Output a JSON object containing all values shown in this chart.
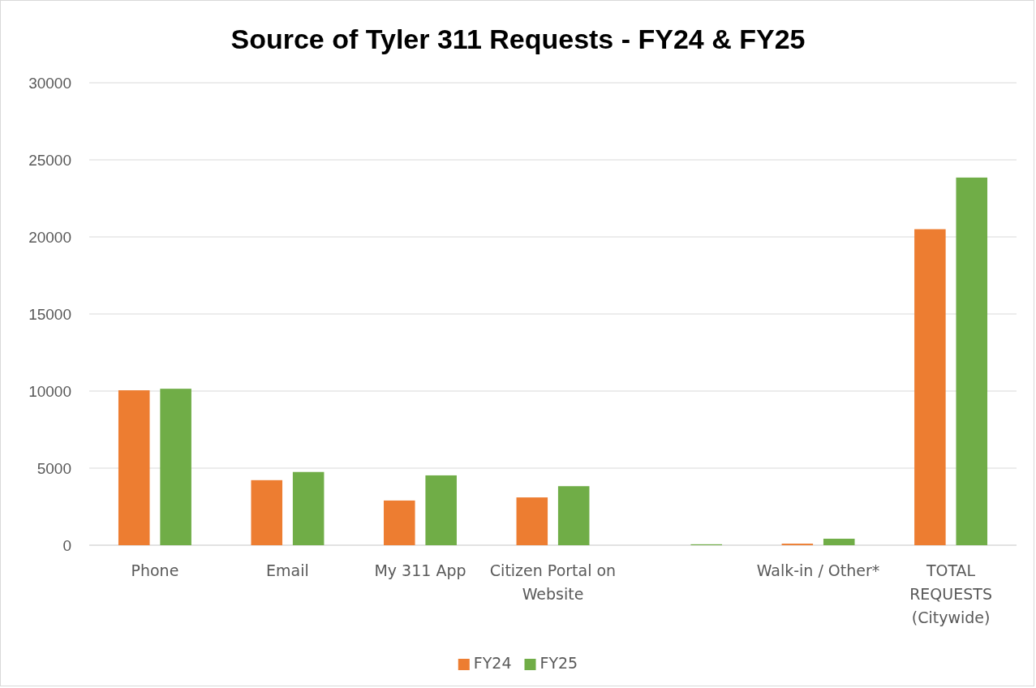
{
  "chart_data": {
    "type": "bar",
    "title": "Source of Tyler 311 Requests - FY24 & FY25",
    "categories": [
      "Phone",
      "Email",
      "My 311 App",
      "Citizen Portal on Website",
      null,
      "Walk-in / Other*",
      "TOTAL REQUESTS (Citywide)"
    ],
    "series": [
      {
        "name": "FY24",
        "color": "#ed7d31",
        "values": [
          10050,
          4220,
          2900,
          3100,
          null,
          100,
          20500
        ]
      },
      {
        "name": "FY25",
        "color": "#70ad47",
        "values": [
          10150,
          4750,
          4530,
          3830,
          60,
          420,
          23850
        ]
      }
    ],
    "ylim": [
      0,
      30000
    ],
    "yticks": [
      0,
      5000,
      10000,
      15000,
      20000,
      25000,
      30000
    ],
    "grid": "y",
    "legend": "bottom"
  }
}
